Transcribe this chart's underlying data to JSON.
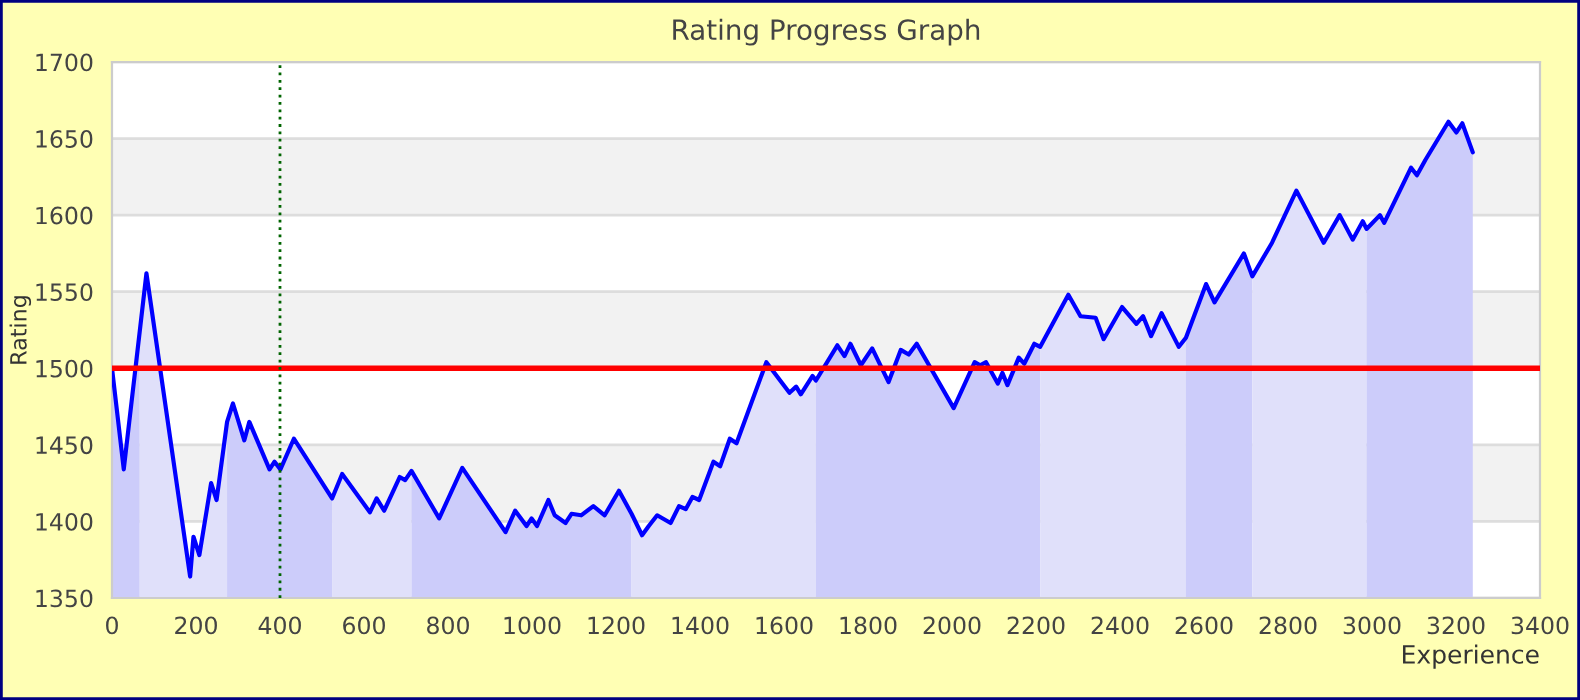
{
  "chart_data": {
    "type": "line",
    "title": "Rating Progress Graph",
    "xlabel": "Experience",
    "ylabel": "Rating",
    "xlim": [
      0,
      3400
    ],
    "xticks": [
      0,
      200,
      400,
      600,
      800,
      1000,
      1200,
      1400,
      1600,
      1800,
      2000,
      2200,
      2400,
      2600,
      2800,
      3000,
      3200,
      3400
    ],
    "ylim": [
      1350,
      1700
    ],
    "yticks": [
      1350,
      1400,
      1450,
      1500,
      1550,
      1600,
      1650,
      1700
    ],
    "grid": "y",
    "bands": [
      {
        "axis": "y",
        "from": 1400,
        "to": 1450,
        "color": "#f2f2f2"
      },
      {
        "axis": "y",
        "from": 1500,
        "to": 1550,
        "color": "#f2f2f2"
      },
      {
        "axis": "y",
        "from": 1600,
        "to": 1650,
        "color": "#f2f2f2"
      }
    ],
    "ref_lines": [
      {
        "axis": "y",
        "value": 1500,
        "color": "#ff0000",
        "line_style": "solid"
      },
      {
        "axis": "x",
        "value": 400,
        "color": "#006400",
        "line_style": "dotted"
      }
    ],
    "series": [
      {
        "type": "area",
        "color": "#ccccfa",
        "x": [
          0,
          28,
          66
        ],
        "values": [
          1500,
          1434,
          1524
        ]
      },
      {
        "type": "area",
        "color": "#e0e0fa",
        "x": [
          66,
          82,
          186,
          194,
          208,
          236,
          249,
          274
        ],
        "values": [
          1524,
          1562,
          1364,
          1390,
          1378,
          1425,
          1414,
          1465
        ]
      },
      {
        "type": "area",
        "color": "#ccccfa",
        "x": [
          274,
          288,
          315,
          327,
          375,
          387,
          401,
          433,
          524
        ],
        "values": [
          1465,
          1477,
          1453,
          1465,
          1434,
          1439,
          1434,
          1454,
          1415
        ]
      },
      {
        "type": "area",
        "color": "#e0e0fa",
        "x": [
          524,
          548,
          614,
          630,
          648,
          685,
          698,
          713
        ],
        "values": [
          1415,
          1431,
          1406,
          1415,
          1407,
          1429,
          1427,
          1433
        ]
      },
      {
        "type": "area",
        "color": "#ccccfa",
        "x": [
          713,
          779,
          834,
          937,
          960,
          987,
          999,
          1012,
          1039,
          1054,
          1080,
          1094,
          1117,
          1146,
          1173,
          1207,
          1237
        ],
        "values": [
          1433,
          1402,
          1435,
          1393,
          1407,
          1397,
          1402,
          1397,
          1414,
          1404,
          1399,
          1405,
          1404,
          1410,
          1404,
          1420,
          1405
        ]
      },
      {
        "type": "area",
        "color": "#e0e0fa",
        "x": [
          1237,
          1262,
          1278,
          1298,
          1330,
          1350,
          1366,
          1382,
          1398,
          1432,
          1448,
          1471,
          1487,
          1558,
          1613,
          1629,
          1640,
          1668,
          1676
        ],
        "values": [
          1405,
          1391,
          1397,
          1404,
          1399,
          1410,
          1408,
          1416,
          1414,
          1439,
          1436,
          1454,
          1451,
          1504,
          1484,
          1488,
          1483,
          1495,
          1492
        ]
      },
      {
        "type": "area",
        "color": "#ccccfa",
        "x": [
          1676,
          1727,
          1744,
          1758,
          1783,
          1810,
          1849,
          1878,
          1897,
          1916,
          2004,
          2054,
          2067,
          2081,
          2109,
          2120,
          2132,
          2159,
          2172,
          2196,
          2210
        ],
        "values": [
          1492,
          1515,
          1508,
          1516,
          1502,
          1513,
          1491,
          1512,
          1509,
          1516,
          1474,
          1504,
          1502,
          1504,
          1490,
          1497,
          1489,
          1507,
          1503,
          1516,
          1514
        ]
      },
      {
        "type": "area",
        "color": "#e0e0fa",
        "x": [
          2210,
          2277,
          2306,
          2342,
          2361,
          2405,
          2439,
          2455,
          2474,
          2499,
          2540,
          2557
        ],
        "values": [
          1514,
          1548,
          1534,
          1533,
          1519,
          1540,
          1529,
          1534,
          1521,
          1536,
          1514,
          1520
        ]
      },
      {
        "type": "area",
        "color": "#ccccfa",
        "x": [
          2557,
          2605,
          2625,
          2695,
          2715
        ],
        "values": [
          1520,
          1555,
          1543,
          1575,
          1560
        ]
      },
      {
        "type": "area",
        "color": "#e0e0fa",
        "x": [
          2715,
          2762,
          2820,
          2885,
          2923,
          2954,
          2978,
          2987
        ],
        "values": [
          1560,
          1582,
          1616,
          1582,
          1600,
          1584,
          1596,
          1591
        ]
      },
      {
        "type": "area",
        "color": "#ccccfa",
        "x": [
          2987,
          3019,
          3029,
          3093,
          3107,
          3127,
          3182,
          3201,
          3215,
          3240
        ],
        "values": [
          1591,
          1600,
          1595,
          1631,
          1626,
          1636,
          1661,
          1654,
          1660,
          1641
        ]
      },
      {
        "color": "#0000ff",
        "line_style": "solid",
        "x": [
          0,
          28,
          66,
          82,
          186,
          194,
          208,
          236,
          249,
          274,
          288,
          315,
          327,
          375,
          387,
          401,
          433,
          524,
          548,
          614,
          630,
          648,
          685,
          698,
          713,
          779,
          834,
          937,
          960,
          987,
          999,
          1012,
          1039,
          1054,
          1080,
          1094,
          1117,
          1146,
          1173,
          1207,
          1237,
          1262,
          1278,
          1298,
          1330,
          1350,
          1366,
          1382,
          1398,
          1432,
          1448,
          1471,
          1487,
          1558,
          1613,
          1629,
          1640,
          1668,
          1676,
          1727,
          1744,
          1758,
          1783,
          1810,
          1849,
          1878,
          1897,
          1916,
          2004,
          2054,
          2067,
          2081,
          2109,
          2120,
          2132,
          2159,
          2172,
          2196,
          2210,
          2277,
          2306,
          2342,
          2361,
          2405,
          2439,
          2455,
          2474,
          2499,
          2540,
          2557,
          2605,
          2625,
          2695,
          2715,
          2762,
          2820,
          2885,
          2923,
          2954,
          2978,
          2987,
          3019,
          3029,
          3093,
          3107,
          3127,
          3182,
          3201,
          3215,
          3240
        ],
        "values": [
          1500,
          1434,
          1524,
          1562,
          1364,
          1390,
          1378,
          1425,
          1414,
          1465,
          1477,
          1453,
          1465,
          1434,
          1439,
          1434,
          1454,
          1415,
          1431,
          1406,
          1415,
          1407,
          1429,
          1427,
          1433,
          1402,
          1435,
          1393,
          1407,
          1397,
          1402,
          1397,
          1414,
          1404,
          1399,
          1405,
          1404,
          1410,
          1404,
          1420,
          1405,
          1391,
          1397,
          1404,
          1399,
          1410,
          1408,
          1416,
          1414,
          1439,
          1436,
          1454,
          1451,
          1504,
          1484,
          1488,
          1483,
          1495,
          1492,
          1515,
          1508,
          1516,
          1502,
          1513,
          1491,
          1512,
          1509,
          1516,
          1474,
          1504,
          1502,
          1504,
          1490,
          1497,
          1489,
          1507,
          1503,
          1516,
          1514,
          1548,
          1534,
          1533,
          1519,
          1540,
          1529,
          1534,
          1521,
          1536,
          1514,
          1520,
          1555,
          1543,
          1575,
          1560,
          1582,
          1616,
          1582,
          1600,
          1584,
          1596,
          1591,
          1600,
          1595,
          1631,
          1626,
          1636,
          1661,
          1654,
          1660,
          1641
        ]
      }
    ]
  }
}
